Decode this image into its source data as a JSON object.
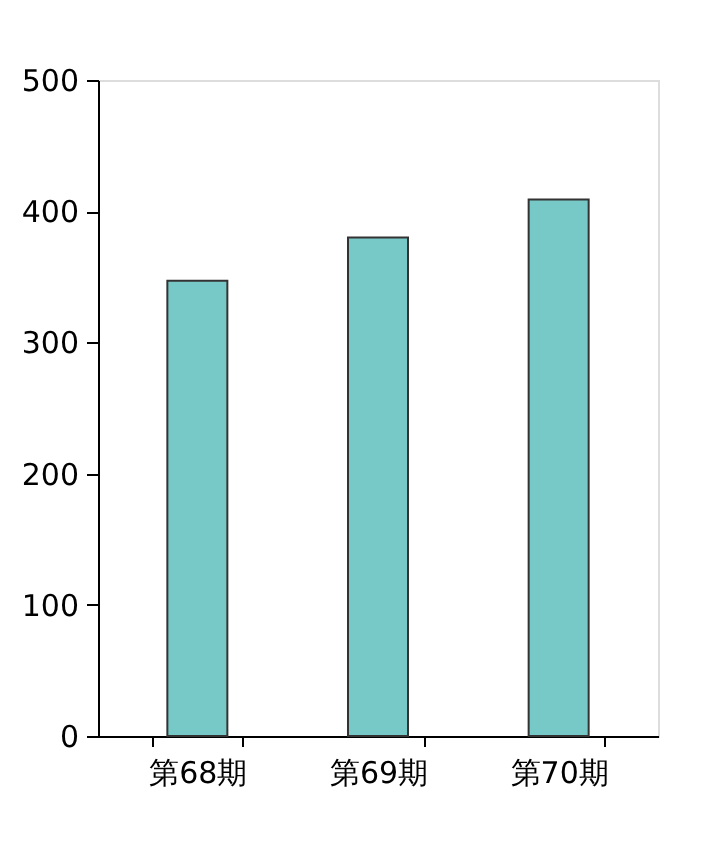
{
  "chart_data": {
    "type": "bar",
    "categories": [
      "第68期",
      "第69期",
      "第70期"
    ],
    "values": [
      347,
      380,
      409
    ],
    "color": "#76c9c6",
    "ylim": [
      0,
      500
    ],
    "yticks": [
      0,
      100,
      200,
      300,
      400,
      500
    ],
    "grid": false
  }
}
